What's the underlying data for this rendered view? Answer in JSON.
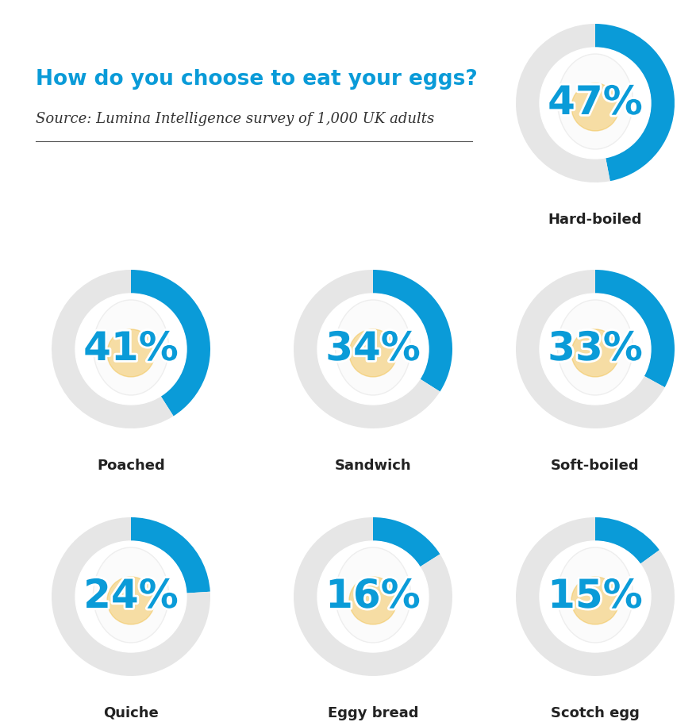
{
  "chart_data": {
    "type": "donut",
    "title": "How do you choose to eat your eggs?",
    "subtitle": "Source: Lumina Intelligence survey of 1,000 UK adults",
    "categories": [
      "Hard-boiled",
      "Poached",
      "Sandwich",
      "Soft-boiled",
      "Quiche",
      "Eggy bread",
      "Scotch egg"
    ],
    "values": [
      47,
      41,
      34,
      33,
      24,
      16,
      15
    ],
    "value_labels": [
      "47%",
      "41%",
      "34%",
      "33%",
      "24%",
      "16%",
      "15%"
    ],
    "color": "#0a9bd8",
    "data_labels": true
  }
}
